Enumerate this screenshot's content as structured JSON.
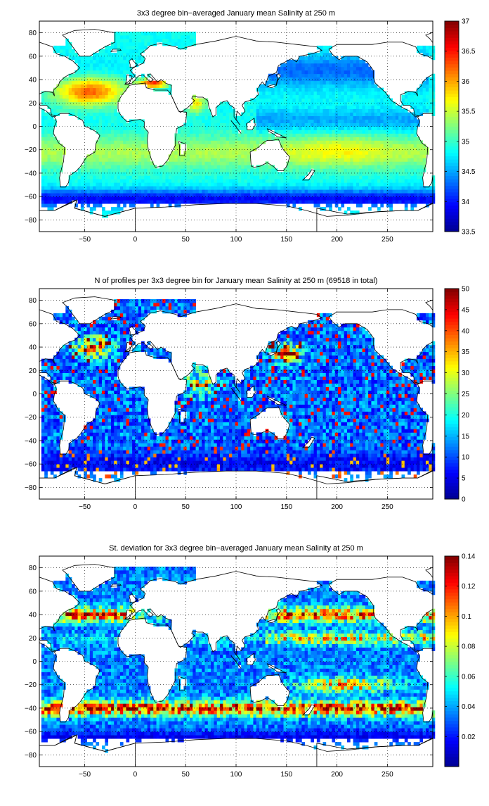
{
  "colormap": [
    "#00008f",
    "#0000ff",
    "#0080ff",
    "#00ffff",
    "#80ff80",
    "#ffff00",
    "#ff8000",
    "#ff0000",
    "#800000"
  ],
  "land_color": "#ffffff",
  "coast_color": "#000000",
  "chart_data": [
    {
      "type": "heatmap",
      "title": "3x3 degree bin−averaged January mean Salinity at 250 m",
      "xlim": [
        -95,
        295
      ],
      "ylim": [
        -90,
        90
      ],
      "x_ticks": [
        -50,
        0,
        50,
        100,
        150,
        200,
        250
      ],
      "y_ticks": [
        -80,
        -60,
        -40,
        -20,
        0,
        20,
        40,
        60,
        80
      ],
      "x_tick_labels": [
        "−50",
        "0",
        "50",
        "100",
        "150",
        "200",
        "250"
      ],
      "y_tick_labels": [
        "−80",
        "−60",
        "−40",
        "−20",
        "0",
        "20",
        "40",
        "60",
        "80"
      ],
      "grid": true,
      "colorbar": {
        "range": [
          33.5,
          37
        ],
        "ticks": [
          33.5,
          34,
          34.5,
          35,
          35.5,
          36,
          36.5,
          37
        ],
        "tick_labels": [
          "33.5",
          "34",
          "34.5",
          "35",
          "35.5",
          "36",
          "36.5",
          "37"
        ]
      }
    },
    {
      "type": "heatmap",
      "title": "N of profiles per 3x3 degree bin for January mean Salinity at 250 m (69518 in total)",
      "xlim": [
        -95,
        295
      ],
      "ylim": [
        -90,
        90
      ],
      "x_ticks": [
        -50,
        0,
        50,
        100,
        150,
        200,
        250
      ],
      "y_ticks": [
        -80,
        -60,
        -40,
        -20,
        0,
        20,
        40,
        60,
        80
      ],
      "x_tick_labels": [
        "−50",
        "0",
        "50",
        "100",
        "150",
        "200",
        "250"
      ],
      "y_tick_labels": [
        "−80",
        "−60",
        "−40",
        "−20",
        "0",
        "20",
        "40",
        "60",
        "80"
      ],
      "grid": true,
      "colorbar": {
        "range": [
          0,
          50
        ],
        "ticks": [
          0,
          5,
          10,
          15,
          20,
          25,
          30,
          35,
          40,
          45,
          50
        ],
        "tick_labels": [
          "0",
          "5",
          "10",
          "15",
          "20",
          "25",
          "30",
          "35",
          "40",
          "45",
          "50"
        ]
      }
    },
    {
      "type": "heatmap",
      "title": "St. deviation for 3x3 degree bin−averaged January mean Salinity at 250 m",
      "xlim": [
        -95,
        295
      ],
      "ylim": [
        -90,
        90
      ],
      "x_ticks": [
        -50,
        0,
        50,
        100,
        150,
        200,
        250
      ],
      "y_ticks": [
        -80,
        -60,
        -40,
        -20,
        0,
        20,
        40,
        60,
        80
      ],
      "x_tick_labels": [
        "−50",
        "0",
        "50",
        "100",
        "150",
        "200",
        "250"
      ],
      "y_tick_labels": [
        "−80",
        "−60",
        "−40",
        "−20",
        "0",
        "20",
        "40",
        "60",
        "80"
      ],
      "grid": true,
      "colorbar": {
        "range": [
          0,
          0.14
        ],
        "ticks": [
          0.02,
          0.04,
          0.06,
          0.08,
          0.1,
          0.12,
          0.14
        ],
        "tick_labels": [
          "0.02",
          "0.04",
          "0.06",
          "0.08",
          "0.1",
          "0.12",
          "0.14"
        ]
      }
    }
  ]
}
